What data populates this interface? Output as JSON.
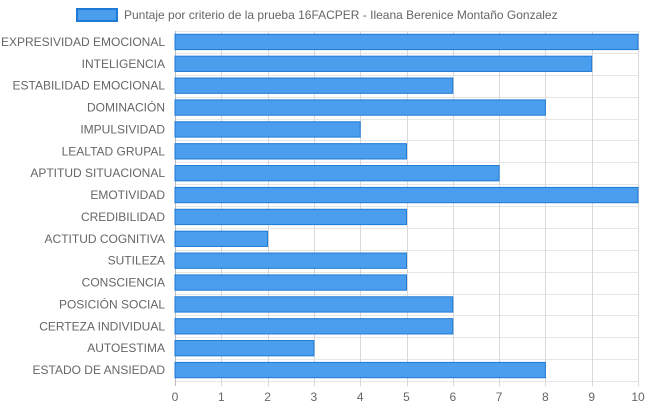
{
  "chart_data": {
    "type": "bar",
    "orientation": "horizontal",
    "categories": [
      "EXPRESIVIDAD EMOCIONAL",
      "INTELIGENCIA",
      "ESTABILIDAD EMOCIONAL",
      "DOMINACIÓN",
      "IMPULSIVIDAD",
      "LEALTAD GRUPAL",
      "APTITUD SITUACIONAL",
      "EMOTIVIDAD",
      "CREDIBILIDAD",
      "ACTITUD COGNITIVA",
      "SUTILEZA",
      "CONSCIENCIA",
      "POSICIÓN SOCIAL",
      "CERTEZA INDIVIDUAL",
      "AUTOESTIMA",
      "ESTADO DE ANSIEDAD"
    ],
    "series": [
      {
        "name": "Puntaje por criterio de la prueba 16FACPER - Ileana Berenice Montaño Gonzalez",
        "values": [
          10,
          9,
          6,
          8,
          4,
          5,
          7,
          10,
          5,
          2,
          5,
          5,
          6,
          6,
          3,
          8
        ],
        "color": "#4a9eed",
        "border_color": "#1f7ad6"
      }
    ],
    "xlim": [
      0,
      10
    ],
    "xticks": [
      "0",
      "1",
      "2",
      "3",
      "4",
      "5",
      "6",
      "7",
      "8",
      "9",
      "10"
    ],
    "grid": true,
    "legend_position": "top"
  }
}
